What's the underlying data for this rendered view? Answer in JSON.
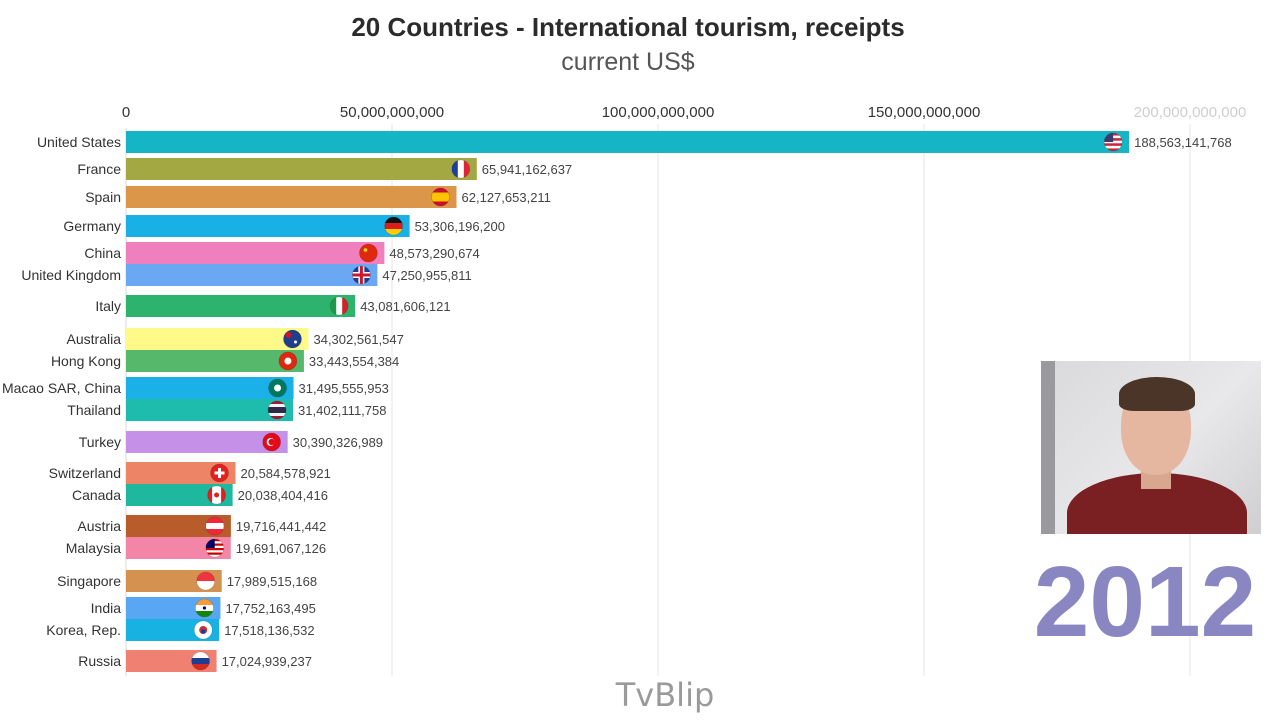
{
  "header": {
    "title": "20 Countries - International tourism, receipts",
    "subtitle": "current US$"
  },
  "overlay": {
    "year": "2012",
    "watermark": "TvBlip"
  },
  "chart_data": {
    "type": "bar",
    "orientation": "horizontal",
    "title": "20 Countries - International tourism, receipts",
    "subtitle": "current US$",
    "xlim": [
      0,
      200000000000
    ],
    "x_ticks": [
      0,
      50000000000,
      100000000000,
      150000000000,
      200000000000
    ],
    "x_tick_labels": [
      "0",
      "50,000,000,000",
      "100,000,000,000",
      "150,000,000,000",
      "200,000,000,000"
    ],
    "grid": true,
    "categories": [
      "United States",
      "France",
      "Spain",
      "Germany",
      "China",
      "United Kingdom",
      "Italy",
      "Australia",
      "Hong Kong",
      "Macao SAR, China",
      "Thailand",
      "Turkey",
      "Switzerland",
      "Canada",
      "Austria",
      "Malaysia",
      "Singapore",
      "India",
      "Korea, Rep.",
      "Russia"
    ],
    "values": [
      188563141768,
      65941162637,
      62127653211,
      53306196200,
      48573290674,
      47250955811,
      43081606121,
      34302561547,
      33443554384,
      31495555953,
      31402111758,
      30390326989,
      20584578921,
      20038404416,
      19716441442,
      19691067126,
      17989515168,
      17752163495,
      17518136532,
      17024939237
    ],
    "value_labels": [
      "188,563,141,768",
      "65,941,162,637",
      "62,127,653,211",
      "53,306,196,200",
      "48,573,290,674",
      "47,250,955,811",
      "43,081,606,121",
      "34,302,561,547",
      "33,443,554,384",
      "31,495,555,953",
      "31,402,111,758",
      "30,390,326,989",
      "20,584,578,921",
      "20,038,404,416",
      "19,716,441,442",
      "19,691,067,126",
      "17,989,515,168",
      "17,752,163,495",
      "17,518,136,532",
      "17,024,939,237"
    ],
    "colors": [
      "#16b5c5",
      "#a3a843",
      "#dc964a",
      "#19b0e6",
      "#f07fbd",
      "#6aa8f4",
      "#2db36e",
      "#fdfa8a",
      "#55b86a",
      "#1ab0e8",
      "#1ebcac",
      "#c590e8",
      "#ee8466",
      "#1db89e",
      "#b95c2c",
      "#f385a6",
      "#d5914f",
      "#59a6f4",
      "#17b2e2",
      "#f08072"
    ],
    "flags": [
      "usa-flag-icon",
      "france-flag-icon",
      "spain-flag-icon",
      "germany-flag-icon",
      "china-flag-icon",
      "uk-flag-icon",
      "italy-flag-icon",
      "australia-flag-icon",
      "hong-kong-flag-icon",
      "macao-flag-icon",
      "thailand-flag-icon",
      "turkey-flag-icon",
      "switzerland-flag-icon",
      "canada-flag-icon",
      "austria-flag-icon",
      "malaysia-flag-icon",
      "singapore-flag-icon",
      "india-flag-icon",
      "korea-flag-icon",
      "russia-flag-icon"
    ],
    "year": "2012"
  }
}
